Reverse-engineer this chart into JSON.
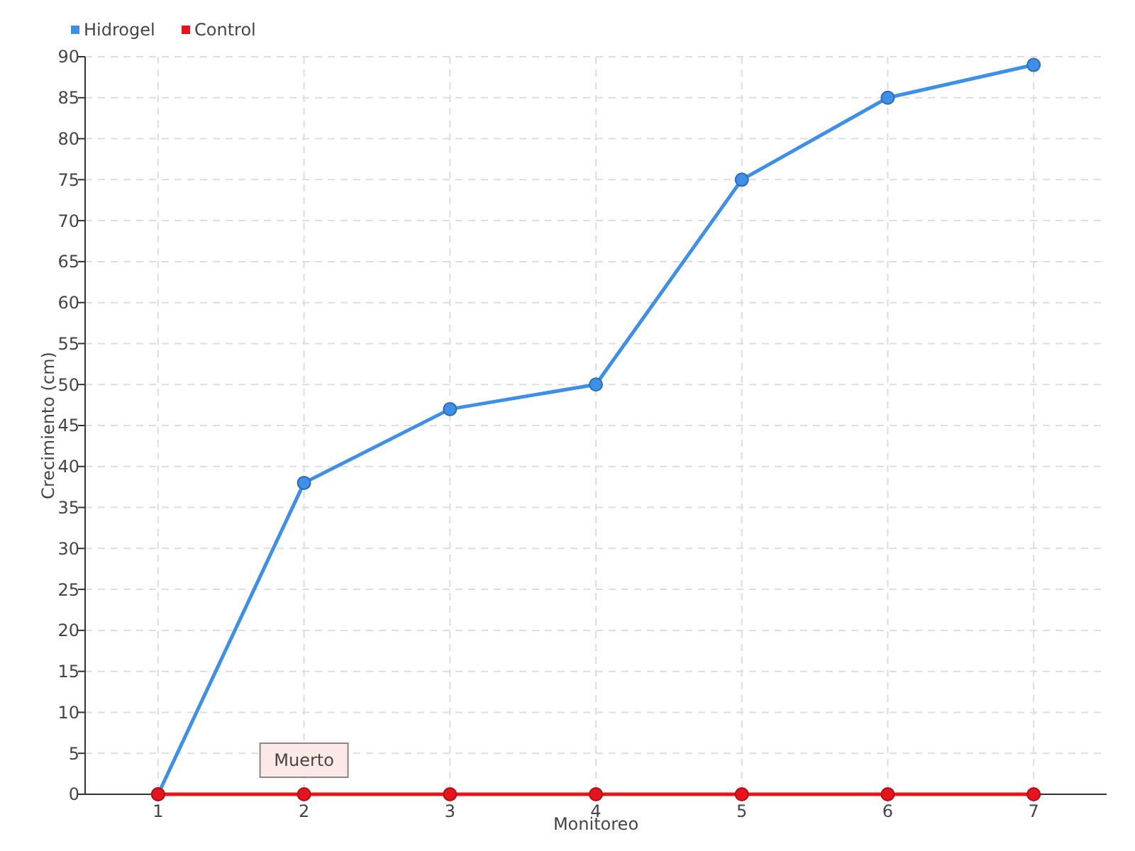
{
  "chart_data": {
    "type": "line",
    "xlabel": "Monitoreo",
    "ylabel": "Crecimiento (cm)",
    "categories": [
      "1",
      "2",
      "3",
      "4",
      "5",
      "6",
      "7"
    ],
    "series": [
      {
        "name": "Hidrogel",
        "color": "#3d8fe8",
        "values": [
          0,
          38,
          47,
          50,
          75,
          85,
          89
        ]
      },
      {
        "name": "Control",
        "color": "#e8141c",
        "values": [
          0,
          0,
          0,
          0,
          0,
          0,
          0
        ]
      }
    ],
    "ylim": [
      0,
      90
    ],
    "yticks": [
      0,
      5,
      10,
      15,
      20,
      25,
      30,
      35,
      40,
      45,
      50,
      55,
      60,
      65,
      70,
      75,
      80,
      85,
      90
    ],
    "grid": true,
    "legend": "top left",
    "marker": "circle",
    "line_style": "solid",
    "annotations": [
      {
        "text": "Muerto",
        "x": "2",
        "y": 0
      }
    ]
  }
}
